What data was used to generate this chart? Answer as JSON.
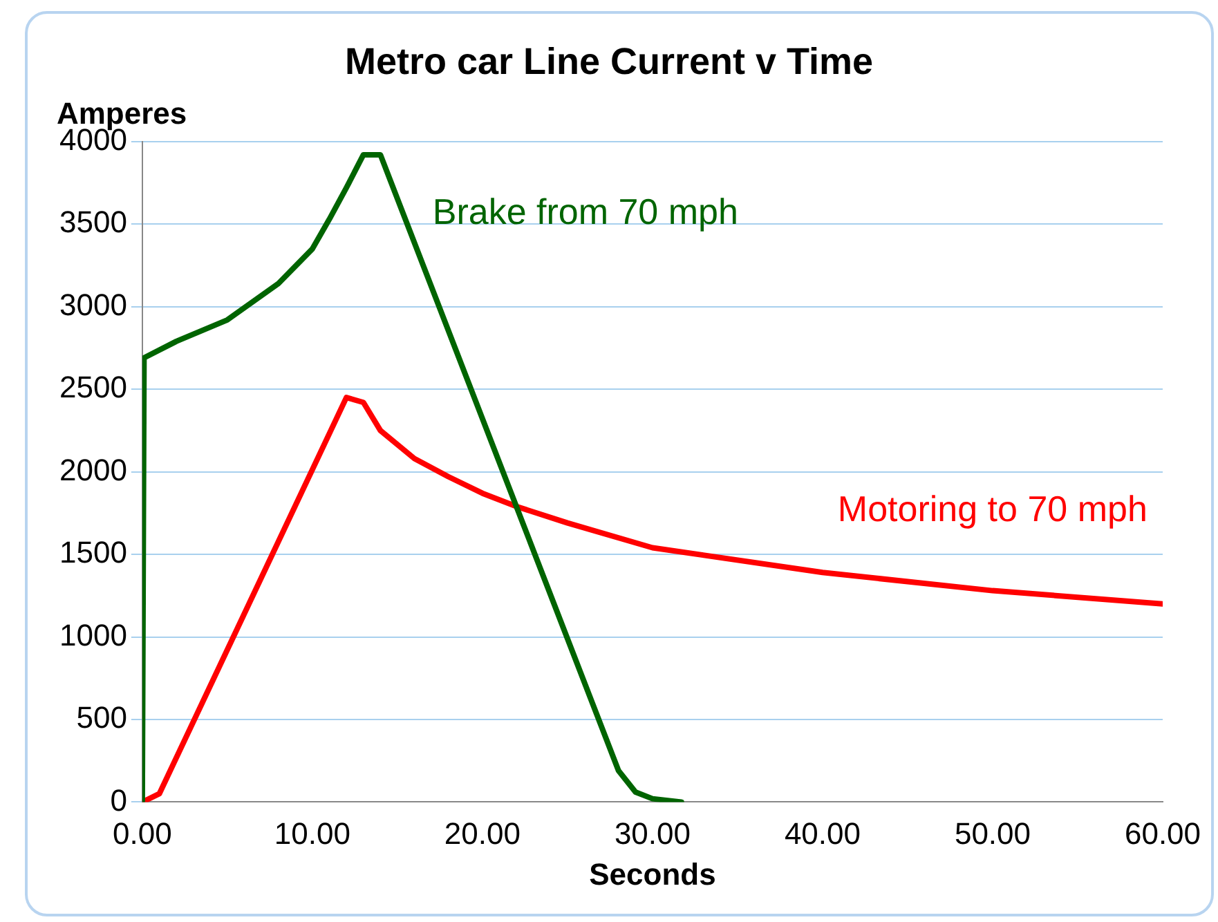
{
  "chart_data": {
    "type": "line",
    "title": "Metro car Line Current v Time",
    "xlabel": "Seconds",
    "ylabel": "Amperes",
    "xlim": [
      0,
      60
    ],
    "xticks": [
      {
        "value": 0,
        "label": "0.00"
      },
      {
        "value": 10,
        "label": "10.00"
      },
      {
        "value": 20,
        "label": "20.00"
      },
      {
        "value": 30,
        "label": "30.00"
      },
      {
        "value": 40,
        "label": "40.00"
      },
      {
        "value": 50,
        "label": "50.00"
      },
      {
        "value": 60,
        "label": "60.00"
      }
    ],
    "ylim": [
      0,
      4000
    ],
    "yticks": [
      0,
      500,
      1000,
      1500,
      2000,
      2500,
      3000,
      3500,
      4000
    ],
    "grid": "y",
    "legend": false,
    "marker": "none",
    "line_style": "solid",
    "series": [
      {
        "name": "Brake from 70 mph",
        "color": "#006400",
        "x": [
          0,
          0.1,
          2,
          5,
          8,
          10,
          11,
          12,
          13,
          14,
          28,
          29,
          30,
          31.7
        ],
        "values": [
          0,
          2690,
          2790,
          2920,
          3140,
          3350,
          3530,
          3720,
          3920,
          3920,
          190,
          60,
          20,
          0
        ]
      },
      {
        "name": "Motoring to 70 mph",
        "color": "#ff0000",
        "x": [
          0,
          1,
          12,
          13,
          14,
          16,
          18,
          20,
          22,
          25,
          30,
          40,
          50,
          60
        ],
        "values": [
          0,
          50,
          2450,
          2420,
          2250,
          2080,
          1970,
          1870,
          1790,
          1690,
          1540,
          1390,
          1280,
          1200
        ]
      }
    ]
  }
}
